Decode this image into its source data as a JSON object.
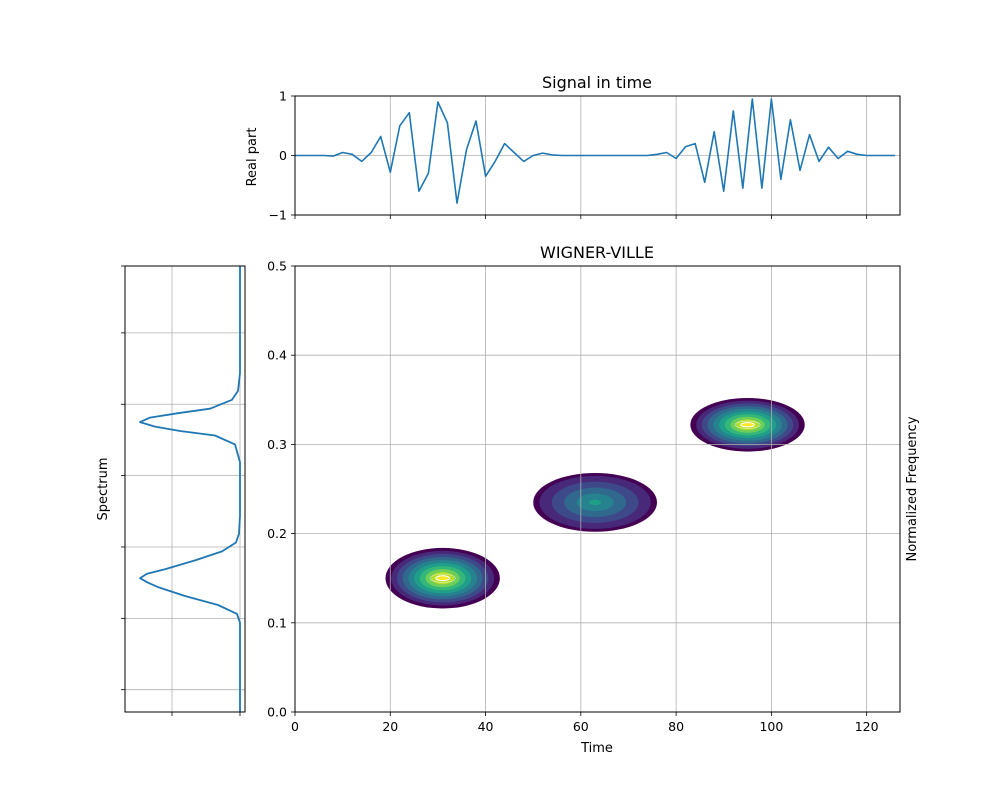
{
  "chart_data": [
    {
      "type": "line",
      "title": "Signal in time",
      "xlabel": "",
      "ylabel": "Real part",
      "xlim": [
        0,
        127
      ],
      "ylim": [
        -1,
        1
      ],
      "yticks": [
        -1,
        0,
        1
      ],
      "ytick_labels": [
        "−1",
        "0",
        "1"
      ],
      "grid": true,
      "series": [
        {
          "color": "#1f77b4",
          "x": [
            0,
            2,
            4,
            6,
            8,
            10,
            12,
            14,
            16,
            18,
            20,
            22,
            24,
            26,
            28,
            30,
            32,
            34,
            36,
            38,
            40,
            42,
            44,
            46,
            48,
            50,
            52,
            54,
            56,
            58,
            60,
            62,
            64,
            66,
            68,
            70,
            72,
            74,
            76,
            78,
            80,
            82,
            84,
            86,
            88,
            90,
            92,
            94,
            96,
            98,
            100,
            102,
            104,
            106,
            108,
            110,
            112,
            114,
            116,
            118,
            120,
            122,
            124,
            126
          ],
          "y": [
            0,
            0,
            0,
            0,
            -0.01,
            0.05,
            0.02,
            -0.1,
            0.05,
            0.32,
            -0.28,
            0.5,
            0.72,
            -0.6,
            -0.3,
            0.9,
            0.55,
            -0.8,
            0.1,
            0.58,
            -0.35,
            -0.1,
            0.2,
            0.05,
            -0.1,
            0,
            0.04,
            0.01,
            0,
            0,
            0,
            0,
            0,
            0,
            0,
            0,
            0,
            0,
            0.02,
            0.05,
            -0.05,
            0.15,
            0.2,
            -0.45,
            0.4,
            -0.6,
            0.75,
            -0.55,
            0.95,
            -0.55,
            0.95,
            -0.4,
            0.6,
            -0.25,
            0.35,
            -0.1,
            0.14,
            -0.05,
            0.07,
            0.02,
            0,
            0,
            0,
            0
          ]
        }
      ]
    },
    {
      "type": "line",
      "title": "",
      "xlabel": "",
      "ylabel": "Spectrum",
      "orientation": "vertical",
      "ylim": [
        0,
        0.5
      ],
      "grid": true,
      "series": [
        {
          "color": "#1f77b4",
          "freq": [
            0,
            0.02,
            0.04,
            0.06,
            0.08,
            0.1,
            0.11,
            0.12,
            0.13,
            0.14,
            0.145,
            0.15,
            0.155,
            0.16,
            0.17,
            0.18,
            0.19,
            0.2,
            0.22,
            0.24,
            0.26,
            0.28,
            0.3,
            0.31,
            0.315,
            0.32,
            0.325,
            0.33,
            0.335,
            0.34,
            0.35,
            0.36,
            0.38,
            0.4,
            0.45,
            0.5
          ],
          "power": [
            0,
            0,
            0,
            0,
            0,
            0,
            0.03,
            0.22,
            0.55,
            0.82,
            0.92,
            1,
            0.93,
            0.75,
            0.45,
            0.18,
            0.04,
            0.01,
            0,
            0,
            0,
            0,
            0.05,
            0.25,
            0.6,
            0.85,
            1,
            0.9,
            0.62,
            0.3,
            0.08,
            0.02,
            0,
            0,
            0,
            0
          ]
        }
      ]
    },
    {
      "type": "heatmap",
      "title": "WIGNER-VILLE",
      "xlabel": "Time",
      "ylabel": "Normalized Frequency",
      "xlim": [
        0,
        127
      ],
      "ylim": [
        0,
        0.5
      ],
      "xticks": [
        0,
        20,
        40,
        60,
        80,
        100,
        120
      ],
      "yticks": [
        0.0,
        0.1,
        0.2,
        0.3,
        0.4,
        0.5
      ],
      "ytick_labels": [
        "0.0",
        "0.1",
        "0.2",
        "0.3",
        "0.4",
        "0.5"
      ],
      "grid": true,
      "colormap": "viridis",
      "blobs": [
        {
          "t": 31,
          "f": 0.15,
          "dt": 12,
          "df": 0.034,
          "peak": 1.0
        },
        {
          "t": 63,
          "f": 0.235,
          "dt": 13,
          "df": 0.033,
          "peak": 0.55
        },
        {
          "t": 95,
          "f": 0.322,
          "dt": 12,
          "df": 0.03,
          "peak": 1.0
        }
      ]
    }
  ]
}
